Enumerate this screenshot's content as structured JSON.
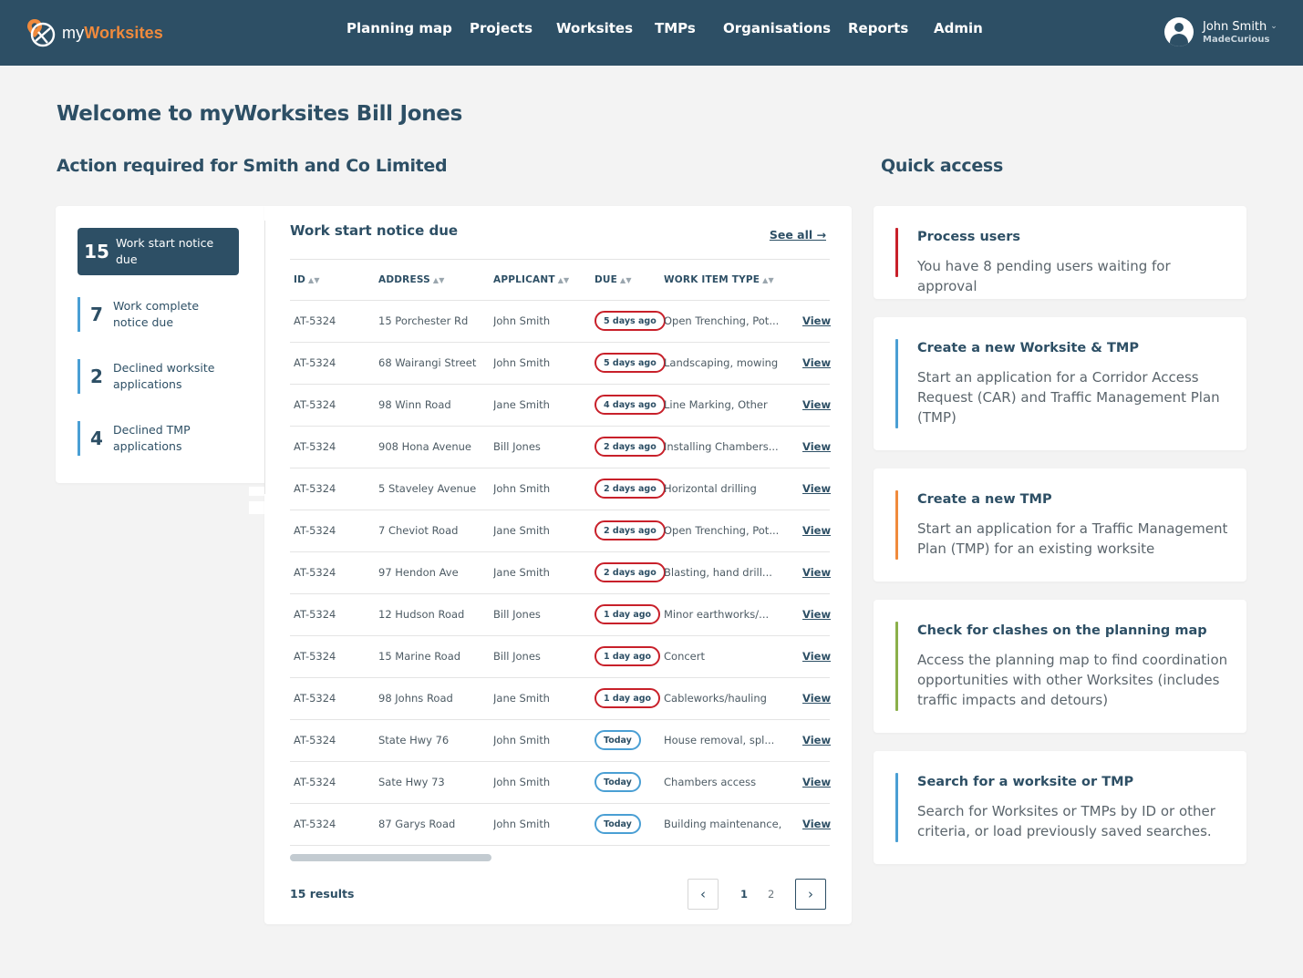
{
  "header": {
    "logo_prefix": "my",
    "logo_accent": "Worksites",
    "nav": [
      "Planning map",
      "Projects",
      "Worksites",
      "TMPs",
      "Organisations",
      "Reports",
      "Admin"
    ],
    "user_name": "John Smith",
    "user_org": "MadeCurious"
  },
  "welcome": "Welcome to myWorksites Bill Jones",
  "action_heading": "Action required for Smith and Co Limited",
  "quick_heading": "Quick access",
  "side": [
    {
      "count": "15",
      "label_1": "Work start notice",
      "label_2": "due"
    },
    {
      "count": "7",
      "label_1": "Work complete",
      "label_2": "notice due"
    },
    {
      "count": "2",
      "label_1": "Declined worksite",
      "label_2": "applications"
    },
    {
      "count": "4",
      "label_1": "Declined TMP",
      "label_2": "applications"
    }
  ],
  "table": {
    "title": "Work start notice due",
    "see_all": "See all →",
    "columns": [
      "ID",
      "ADDRESS",
      "APPLICANT",
      "DUE",
      "WORK ITEM TYPE"
    ],
    "view_label": "View",
    "rows": [
      {
        "id": "AT-5324",
        "address": "15 Porchester Rd",
        "applicant": "John Smith",
        "due": "5 days ago",
        "status": "late",
        "type": "Open Trenching, Pot..."
      },
      {
        "id": "AT-5324",
        "address": "68 Wairangi Street",
        "applicant": "John Smith",
        "due": "5 days ago",
        "status": "late",
        "type": "Landscaping, mowing"
      },
      {
        "id": "AT-5324",
        "address": "98 Winn Road",
        "applicant": "Jane Smith",
        "due": "4 days ago",
        "status": "late",
        "type": "Line Marking, Other"
      },
      {
        "id": "AT-5324",
        "address": "908 Hona Avenue",
        "applicant": "Bill Jones",
        "due": "2 days ago",
        "status": "late",
        "type": "Installing Chambers..."
      },
      {
        "id": "AT-5324",
        "address": "5 Staveley Avenue",
        "applicant": "John Smith",
        "due": "2 days ago",
        "status": "late",
        "type": "Horizontal drilling"
      },
      {
        "id": "AT-5324",
        "address": "7 Cheviot Road",
        "applicant": "Jane Smith",
        "due": "2 days ago",
        "status": "late",
        "type": "Open Trenching, Pot..."
      },
      {
        "id": "AT-5324",
        "address": "97 Hendon Ave",
        "applicant": "Jane Smith",
        "due": "2 days ago",
        "status": "late",
        "type": "Blasting, hand drill..."
      },
      {
        "id": "AT-5324",
        "address": "12 Hudson Road",
        "applicant": "Bill Jones",
        "due": "1 day ago",
        "status": "late",
        "type": "Minor earthworks/..."
      },
      {
        "id": "AT-5324",
        "address": "15 Marine Road",
        "applicant": "Bill Jones",
        "due": "1 day ago",
        "status": "late",
        "type": "Concert"
      },
      {
        "id": "AT-5324",
        "address": "98 Johns Road",
        "applicant": "Jane Smith",
        "due": "1 day ago",
        "status": "late",
        "type": "Cableworks/hauling"
      },
      {
        "id": "AT-5324",
        "address": "State Hwy 76",
        "applicant": "John Smith",
        "due": "Today",
        "status": "today",
        "type": "House removal, spl..."
      },
      {
        "id": "AT-5324",
        "address": "Sate Hwy 73",
        "applicant": "John Smith",
        "due": "Today",
        "status": "today",
        "type": "Chambers access"
      },
      {
        "id": "AT-5324",
        "address": "87 Garys Road",
        "applicant": "John Smith",
        "due": "Today",
        "status": "today",
        "type": "Building maintenance,"
      }
    ],
    "results": "15 results",
    "pages": [
      "1",
      "2"
    ],
    "current_page": "1"
  },
  "quick": [
    {
      "title": "Process users",
      "desc": "You have 8 pending users waiting for approval",
      "color": "#c8202a"
    },
    {
      "title": "Create a new Worksite & TMP",
      "desc": "Start an application for a Corridor Access Request (CAR) and Traffic Management Plan (TMP)",
      "color": "#4a9fd4"
    },
    {
      "title": "Create a new TMP",
      "desc": "Start an application for a Traffic Management Plan (TMP) for an existing worksite",
      "color": "#f08a3c"
    },
    {
      "title": "Check for clashes on the planning map",
      "desc": "Access the planning map to find coordination opportunities with  other Worksites (includes traffic impacts and detours)",
      "color": "#8bb04a"
    },
    {
      "title": "Search for a worksite or TMP",
      "desc": "Search for Worksites or TMPs by ID or other criteria, or load previously saved searches.",
      "color": "#4a9fd4"
    }
  ],
  "colors": {
    "header_bg": "#2d4f65",
    "accent_orange": "#f08a3c",
    "late_red": "#c8202a",
    "today_blue": "#4a9fd4"
  }
}
